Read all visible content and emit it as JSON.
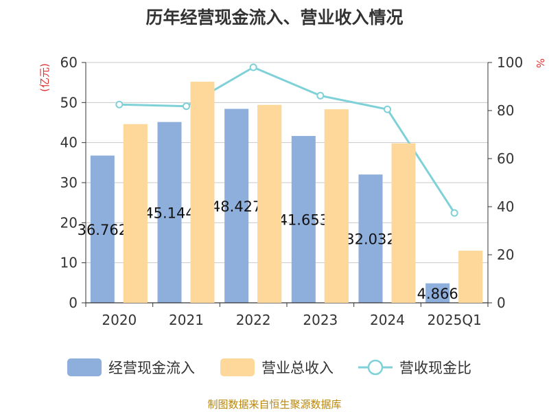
{
  "chart_data": {
    "type": "bar",
    "title": "历年经营现金流入、营业收入情况",
    "categories": [
      "2020",
      "2021",
      "2022",
      "2023",
      "2024",
      "2025Q1"
    ],
    "series": [
      {
        "name": "经营现金流入",
        "type": "bar",
        "axis": "left",
        "values": [
          36.762,
          45.144,
          48.427,
          41.653,
          32.032,
          4.866
        ],
        "labels": [
          "36.762",
          "45.144",
          "48.427",
          "41.653",
          "32.032",
          "4.866"
        ],
        "color": "#8eaedb"
      },
      {
        "name": "营业总收入",
        "type": "bar",
        "axis": "left",
        "values": [
          44.6,
          55.2,
          49.4,
          48.3,
          39.8,
          13.0
        ],
        "color": "#fdd89a"
      },
      {
        "name": "营收现金比",
        "type": "line",
        "axis": "right",
        "values": [
          82.5,
          81.8,
          98.0,
          86.2,
          80.5,
          37.4
        ],
        "color": "#7fd1d8"
      }
    ],
    "y_left": {
      "unit": "(亿元)",
      "ticks": [
        "0",
        "10",
        "20",
        "30",
        "40",
        "50",
        "60"
      ],
      "range": [
        0,
        60
      ]
    },
    "y_right": {
      "unit": "%",
      "ticks": [
        "0",
        "20",
        "40",
        "60",
        "80",
        "100"
      ],
      "range": [
        0,
        100
      ]
    },
    "grid": true,
    "legend_position": "bottom"
  },
  "colors": {
    "left_unit": "#e03030",
    "right_unit": "#e03030",
    "source": "#b8860b"
  },
  "footer": {
    "source": "制图数据来自恒生聚源数据库"
  }
}
